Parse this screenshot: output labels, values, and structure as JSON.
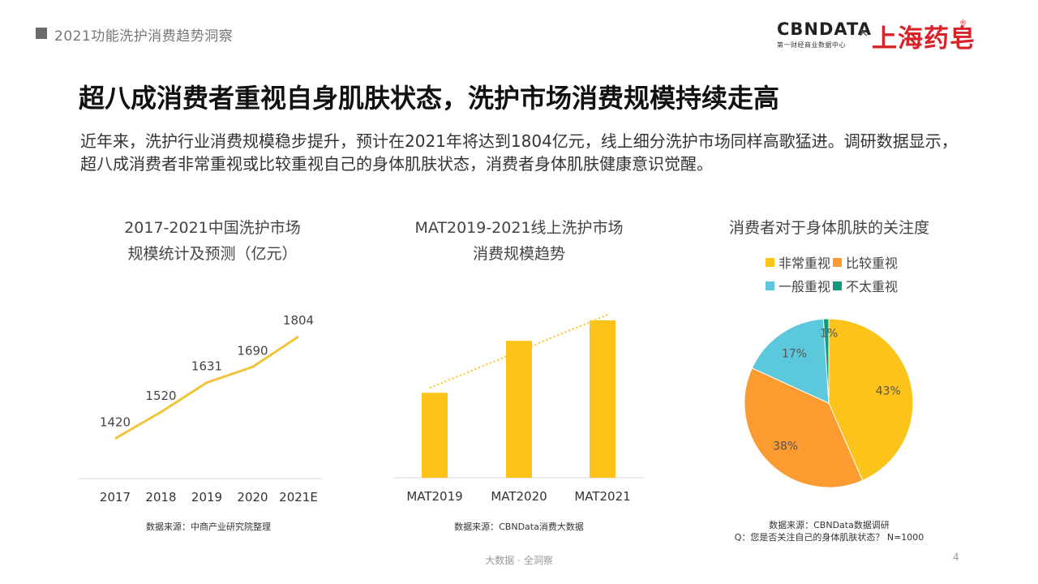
{
  "header": {
    "report_title": "2021功能洗护消费趋势洞察"
  },
  "logo": {
    "cbn": "CBNDATA",
    "cbn_sub": "第一财经商业数据中心",
    "times": "×",
    "brand": "上海药皂",
    "reg": "®"
  },
  "main_title": "超八成消费者重视自身肌肤状态，洗护市场消费规模持续走高",
  "description": "近年来，洗护行业消费规模稳步提升，预计在2021年将达到1804亿元，线上细分洗护市场同样高歌猛进。调研数据显示，超八成消费者非常重视或比较重视自己的身体肌肤状态，消费者身体肌肤健康意识觉醒。",
  "chart_data": [
    {
      "type": "line",
      "title_line1": "2017-2021中国洗护市场",
      "title_line2": "规模统计及预测（亿元）",
      "categories": [
        "2017",
        "2018",
        "2019",
        "2020",
        "2021E"
      ],
      "values": [
        1420,
        1520,
        1631,
        1690,
        1804
      ],
      "value_labels": [
        "1420",
        "1520",
        "1631",
        "1690",
        "1804"
      ],
      "color": "#f2c43a",
      "source": "数据来源：中商产业研究院整理"
    },
    {
      "type": "bar",
      "title_line1": "MAT2019-2021线上洗护市场",
      "title_line2": "消费规模趋势",
      "categories": [
        "MAT2019",
        "MAT2020",
        "MAT2021"
      ],
      "values": [
        0.54,
        0.87,
        1.0
      ],
      "color": "#fcc31a",
      "trendline": true,
      "source": "数据来源：CBNData消费大数据"
    },
    {
      "type": "pie",
      "title": "消费者对于身体肌肤的关注度",
      "series": [
        {
          "name": "非常重视",
          "value": 43,
          "label": "43%",
          "color": "#fcc31a"
        },
        {
          "name": "比较重视",
          "value": 38,
          "label": "38%",
          "color": "#fc9c30"
        },
        {
          "name": "一般重视",
          "value": 17,
          "label": "17%",
          "color": "#5bc8dc"
        },
        {
          "name": "不太重视",
          "value": 1,
          "label": "1%",
          "color": "#12987a"
        }
      ],
      "source_line1": "数据来源：CBNData数据调研",
      "source_line2": "Q：您是否关注自己的身体肌肤状态？ N=1000"
    }
  ],
  "footer": {
    "text": "大数据 · 全洞察",
    "page": "4"
  }
}
